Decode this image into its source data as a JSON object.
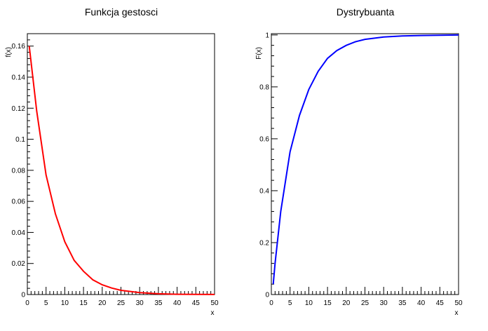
{
  "charts": [
    {
      "title": "Funkcja gestosci",
      "xlabel": "x",
      "ylabel": "f(x)",
      "color": "#ff0000",
      "xlim": [
        0,
        50
      ],
      "ylim": [
        0,
        0.168
      ],
      "xticks": [
        "0",
        "5",
        "10",
        "15",
        "20",
        "25",
        "30",
        "35",
        "40",
        "45",
        "50"
      ],
      "yticks": [
        "0",
        "0.02",
        "0.04",
        "0.06",
        "0.08",
        "0.1",
        "0.12",
        "0.14",
        "0.16"
      ]
    },
    {
      "title": "Dystrybuanta",
      "xlabel": "x",
      "ylabel": "F(x)",
      "color": "#0000ff",
      "xlim": [
        0,
        50
      ],
      "ylim": [
        0,
        1.005
      ],
      "xticks": [
        "0",
        "5",
        "10",
        "15",
        "20",
        "25",
        "30",
        "35",
        "40",
        "45",
        "50"
      ],
      "yticks": [
        "0",
        "0.2",
        "0.4",
        "0.6",
        "0.8",
        "1"
      ]
    }
  ],
  "chart_data": [
    {
      "type": "line",
      "title": "Funkcja gestosci",
      "xlabel": "x",
      "ylabel": "f(x)",
      "xlim": [
        0,
        50
      ],
      "ylim": [
        0,
        0.168
      ],
      "grid": false,
      "series": [
        {
          "color": "#ff0000",
          "x": [
            0.5,
            2.5,
            5,
            7.5,
            10,
            12.5,
            15,
            17.5,
            20,
            22.5,
            25,
            30,
            35,
            40,
            45,
            50
          ],
          "y": [
            0.16,
            0.118,
            0.077,
            0.052,
            0.034,
            0.022,
            0.015,
            0.0095,
            0.0063,
            0.0042,
            0.0027,
            0.0012,
            0.0005,
            0.0002,
            0.0001,
            4e-05
          ]
        }
      ]
    },
    {
      "type": "line",
      "title": "Dystrybuanta",
      "xlabel": "x",
      "ylabel": "F(x)",
      "xlim": [
        0,
        50
      ],
      "ylim": [
        0,
        1.005
      ],
      "grid": false,
      "series": [
        {
          "color": "#0000ff",
          "x": [
            0.5,
            1,
            2.5,
            5,
            7.5,
            10,
            12.5,
            15,
            17.5,
            20,
            22.5,
            25,
            30,
            35,
            40,
            45,
            50
          ],
          "y": [
            0.04,
            0.12,
            0.32,
            0.55,
            0.69,
            0.79,
            0.86,
            0.91,
            0.94,
            0.96,
            0.974,
            0.983,
            0.992,
            0.996,
            0.998,
            0.999,
            1.0
          ]
        }
      ]
    }
  ]
}
